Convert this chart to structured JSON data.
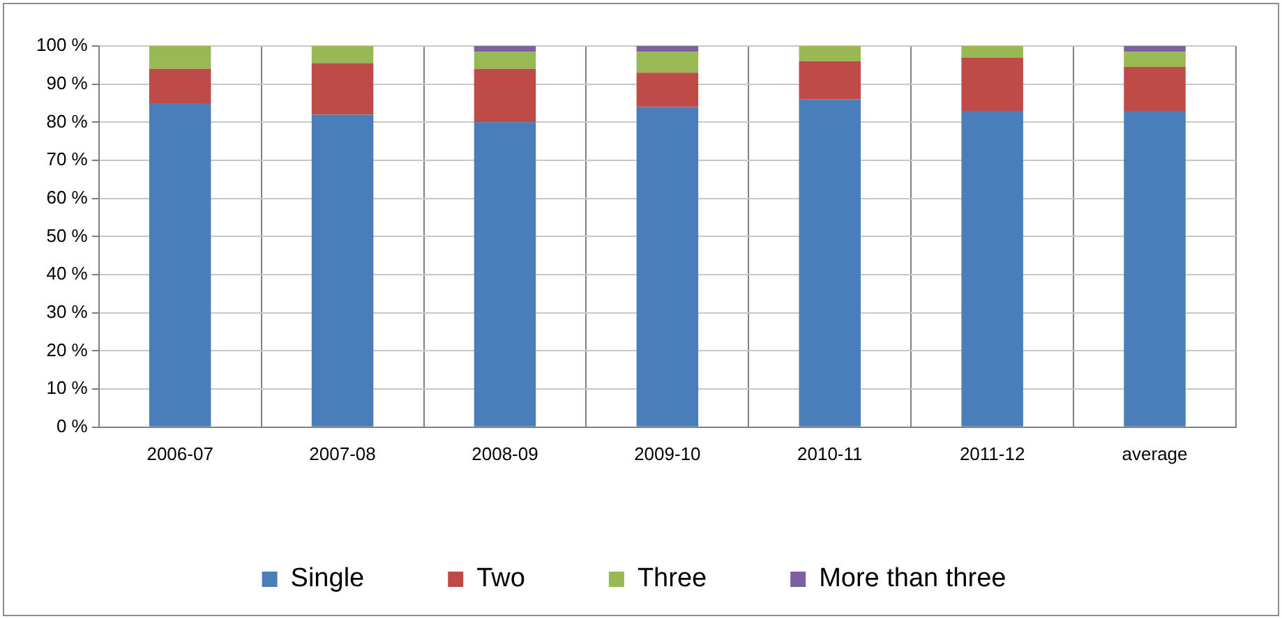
{
  "chart_data": {
    "type": "bar",
    "stacked": true,
    "grid": true,
    "legend": "bottom",
    "categories": [
      "2006-07",
      "2007-08",
      "2008-09",
      "2009-10",
      "2010-11",
      "2011-12",
      "average"
    ],
    "ylim": [
      0,
      100
    ],
    "yticks": [
      {
        "value": 0,
        "label": "0 %"
      },
      {
        "value": 10,
        "label": "10 %"
      },
      {
        "value": 20,
        "label": "20 %"
      },
      {
        "value": 30,
        "label": "30 %"
      },
      {
        "value": 40,
        "label": "40 %"
      },
      {
        "value": 50,
        "label": "50 %"
      },
      {
        "value": 60,
        "label": "60 %"
      },
      {
        "value": 70,
        "label": "70 %"
      },
      {
        "value": 80,
        "label": "80 %"
      },
      {
        "value": 90,
        "label": "90 %"
      },
      {
        "value": 100,
        "label": "100 %"
      }
    ],
    "series": [
      {
        "name": "Single",
        "color": "#4a7ebb",
        "values": [
          85,
          82,
          80,
          84,
          86,
          83,
          83
        ]
      },
      {
        "name": "Two",
        "color": "#be4b48",
        "values": [
          9,
          13.5,
          14,
          9,
          10,
          14,
          11.5
        ]
      },
      {
        "name": "Three",
        "color": "#98b954",
        "values": [
          6,
          4.5,
          4.5,
          5.5,
          4,
          3,
          4
        ]
      },
      {
        "name": "More than three",
        "color": "#7d60a0",
        "values": [
          0,
          0,
          1.5,
          1.5,
          0,
          0,
          1.5
        ]
      }
    ]
  }
}
